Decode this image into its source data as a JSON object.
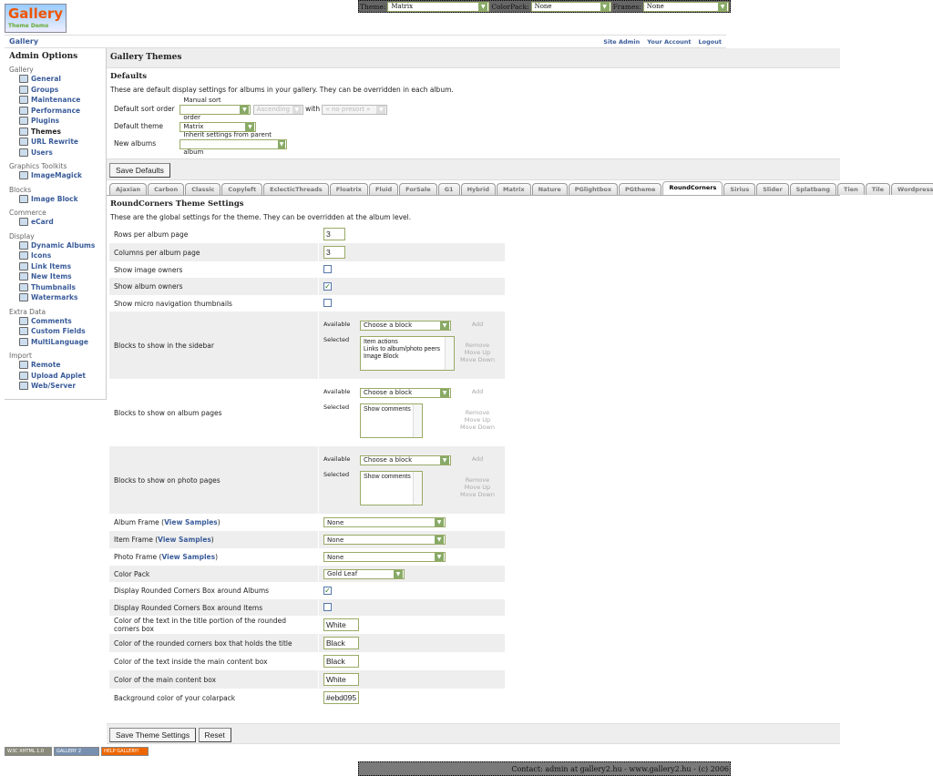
{
  "topbar": {
    "theme_label": "Theme:",
    "theme_value": "Matrix",
    "colorpack_label": "ColorPack:",
    "colorpack_value": "None",
    "frames_label": "Frames:",
    "frames_value": "None"
  },
  "logo": {
    "text": "Gallery",
    "sub": "Theme Demo"
  },
  "header": {
    "breadcrumb": "Gallery",
    "links": [
      "Site Admin",
      "Your Account",
      "Logout"
    ]
  },
  "sidebar": {
    "title": "Admin Options",
    "groups": [
      {
        "label": "Gallery",
        "items": [
          "General",
          "Groups",
          "Maintenance",
          "Performance",
          "Plugins",
          "Themes",
          "URL Rewrite",
          "Users"
        ]
      },
      {
        "label": "Graphics Toolkits",
        "items": [
          "ImageMagick"
        ]
      },
      {
        "label": "Blocks",
        "items": [
          "Image Block"
        ]
      },
      {
        "label": "Commerce",
        "items": [
          "eCard"
        ]
      },
      {
        "label": "Display",
        "items": [
          "Dynamic Albums",
          "Icons",
          "Link Items",
          "New Items",
          "Thumbnails",
          "Watermarks"
        ]
      },
      {
        "label": "Extra Data",
        "items": [
          "Comments",
          "Custom Fields",
          "MultiLanguage"
        ]
      },
      {
        "label": "Import",
        "items": [
          "Remote",
          "Upload Applet",
          "Web/Server"
        ]
      }
    ],
    "active": "Themes"
  },
  "main": {
    "title": "Gallery Themes",
    "defaults": {
      "heading": "Defaults",
      "desc": "These are default display settings for albums in your gallery. They can be overridden in each album.",
      "sort_label": "Default sort order",
      "sort_value": "Manual sort order",
      "sort_dir": "Ascending",
      "with_label": "with",
      "presort": "« no presort »",
      "theme_label": "Default theme",
      "theme_value": "Matrix",
      "new_label": "New albums",
      "new_value": "Inherit settings from parent album",
      "save": "Save Defaults"
    },
    "tabs": [
      "Ajaxian",
      "Carbon",
      "Classic",
      "Copyleft",
      "EclecticThreads",
      "Floatrix",
      "Fluid",
      "ForSale",
      "G1",
      "Hybrid",
      "Matrix",
      "Nature",
      "PGlightbox",
      "PGtheme",
      "RoundCorners",
      "Sirius",
      "Slider",
      "Splatbang",
      "Tien",
      "Tile",
      "WordpressEmbedded"
    ],
    "active_tab": "RoundCorners",
    "settings": {
      "heading": "RoundCorners Theme Settings",
      "desc": "These are the global settings for the theme. They can be overridden at the album level.",
      "rows_label": "Rows per album page",
      "rows_value": "3",
      "cols_label": "Columns per album page",
      "cols_value": "3",
      "owners_label": "Show image owners",
      "owners_checked": false,
      "album_owners_label": "Show album owners",
      "album_owners_checked": true,
      "micro_label": "Show micro navigation thumbnails",
      "micro_checked": false,
      "blocks": [
        {
          "label": "Blocks to show in the sidebar",
          "selected": [
            "Item actions",
            "Links to album/photo peers",
            "Image Block"
          ]
        },
        {
          "label": "Blocks to show on album pages",
          "selected": [
            "Show comments"
          ]
        },
        {
          "label": "Blocks to show on photo pages",
          "selected": [
            "Show comments"
          ]
        }
      ],
      "available": "Available",
      "selected_label": "Selected",
      "choose": "Choose a block",
      "add": "Add",
      "remove": "Remove",
      "move_up": "Move Up",
      "move_down": "Move Down",
      "frames": [
        {
          "label": "Album Frame",
          "value": "None"
        },
        {
          "label": "Item Frame",
          "value": "None"
        },
        {
          "label": "Photo Frame",
          "value": "None"
        }
      ],
      "view_samples": "View Samples",
      "colorpack_label": "Color Pack",
      "colorpack_value": "Gold Leaf",
      "rc_albums_label": "Display Rounded Corners Box around Albums",
      "rc_albums_checked": true,
      "rc_items_label": "Display Rounded Corners Box around Items",
      "rc_items_checked": false,
      "colors": [
        {
          "label": "Color of the text in the title portion of the rounded corners box",
          "value": "White"
        },
        {
          "label": "Color of the rounded corners box that holds the title",
          "value": "Black"
        },
        {
          "label": "Color of the text inside the main content box",
          "value": "Black"
        },
        {
          "label": "Color of the main content box",
          "value": "White"
        },
        {
          "label": "Background color of your colarpack",
          "value": "#ebd095"
        }
      ],
      "save": "Save Theme Settings",
      "reset": "Reset"
    }
  },
  "badges": [
    "W3C XHTML 1.0",
    "GALLERY 2",
    "HELP GALLERY!"
  ],
  "footer": "Contact: admin at gallery2.hu - www.gallery2.hu - (c) 2006"
}
